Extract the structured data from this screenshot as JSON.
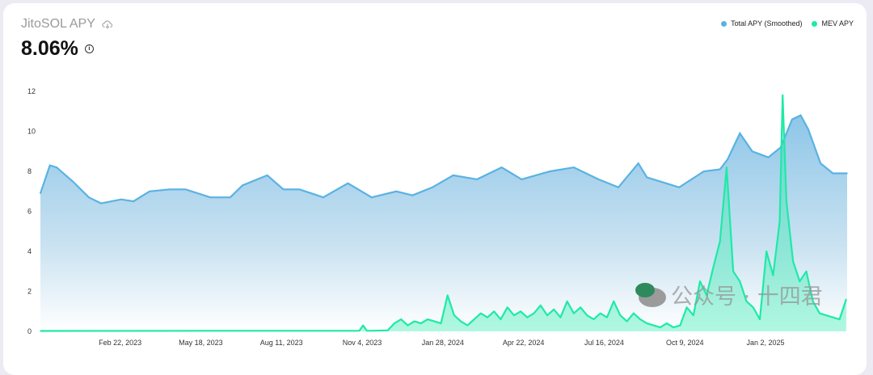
{
  "header": {
    "title": "JitoSOL APY",
    "download_icon": "cloud-download-icon",
    "value": "8.06%",
    "info_icon": "info-icon"
  },
  "chart_data": {
    "type": "area",
    "title": "JitoSOL APY",
    "xlabel": "",
    "ylabel": "",
    "ylim": [
      0,
      12
    ],
    "yticks": [
      "0",
      "2",
      "4",
      "6",
      "8",
      "10",
      "12"
    ],
    "xlim": [
      "2022-11-30",
      "2025-03-29"
    ],
    "xticks": [
      {
        "date": "2023-02-22",
        "label": "Feb 22, 2023"
      },
      {
        "date": "2023-05-18",
        "label": "May 18, 2023"
      },
      {
        "date": "2023-08-11",
        "label": "Aug 11, 2023"
      },
      {
        "date": "2023-11-04",
        "label": "Nov 4, 2023"
      },
      {
        "date": "2024-01-28",
        "label": "Jan 28, 2024"
      },
      {
        "date": "2024-04-22",
        "label": "Apr 22, 2024"
      },
      {
        "date": "2024-07-16",
        "label": "Jul 16, 2024"
      },
      {
        "date": "2024-10-09",
        "label": "Oct 9, 2024"
      },
      {
        "date": "2025-01-02",
        "label": "Jan 2, 2025"
      }
    ],
    "grid": false,
    "legend_position": "top-right",
    "series": [
      {
        "name": "Total APY (Smoothed)",
        "color": "#5ab2e3",
        "type": "area",
        "points": [
          [
            "2022-11-30",
            6.9
          ],
          [
            "2022-12-10",
            8.3
          ],
          [
            "2022-12-17",
            8.2
          ],
          [
            "2023-01-03",
            7.5
          ],
          [
            "2023-01-20",
            6.7
          ],
          [
            "2023-02-02",
            6.4
          ],
          [
            "2023-02-23",
            6.6
          ],
          [
            "2023-03-08",
            6.5
          ],
          [
            "2023-03-25",
            7.0
          ],
          [
            "2023-04-15",
            7.1
          ],
          [
            "2023-05-02",
            7.1
          ],
          [
            "2023-05-28",
            6.7
          ],
          [
            "2023-06-18",
            6.7
          ],
          [
            "2023-07-01",
            7.3
          ],
          [
            "2023-07-27",
            7.8
          ],
          [
            "2023-08-13",
            7.1
          ],
          [
            "2023-08-30",
            7.1
          ],
          [
            "2023-09-24",
            6.7
          ],
          [
            "2023-10-20",
            7.4
          ],
          [
            "2023-11-14",
            6.7
          ],
          [
            "2023-12-10",
            7.0
          ],
          [
            "2023-12-27",
            6.8
          ],
          [
            "2024-01-17",
            7.2
          ],
          [
            "2024-02-08",
            7.8
          ],
          [
            "2024-03-04",
            7.6
          ],
          [
            "2024-03-30",
            8.2
          ],
          [
            "2024-04-20",
            7.6
          ],
          [
            "2024-05-20",
            8.0
          ],
          [
            "2024-06-14",
            8.2
          ],
          [
            "2024-07-10",
            7.6
          ],
          [
            "2024-07-31",
            7.2
          ],
          [
            "2024-08-21",
            8.4
          ],
          [
            "2024-08-30",
            7.7
          ],
          [
            "2024-10-03",
            7.2
          ],
          [
            "2024-10-29",
            8.0
          ],
          [
            "2024-11-15",
            8.1
          ],
          [
            "2024-11-23",
            8.6
          ],
          [
            "2024-12-06",
            9.9
          ],
          [
            "2024-12-19",
            9.0
          ],
          [
            "2025-01-05",
            8.7
          ],
          [
            "2025-01-18",
            9.2
          ],
          [
            "2025-01-30",
            10.6
          ],
          [
            "2025-02-08",
            10.8
          ],
          [
            "2025-02-16",
            10.1
          ],
          [
            "2025-03-01",
            8.4
          ],
          [
            "2025-03-14",
            7.9
          ],
          [
            "2025-03-29",
            7.9
          ]
        ]
      },
      {
        "name": "MEV APY",
        "color": "#1eeaa5",
        "type": "line",
        "points": [
          [
            "2022-11-30",
            0.02
          ],
          [
            "2023-06-01",
            0.03
          ],
          [
            "2023-11-01",
            0.03
          ],
          [
            "2023-11-05",
            0.3
          ],
          [
            "2023-11-09",
            0.03
          ],
          [
            "2023-12-01",
            0.05
          ],
          [
            "2023-12-08",
            0.4
          ],
          [
            "2023-12-15",
            0.6
          ],
          [
            "2023-12-22",
            0.3
          ],
          [
            "2023-12-29",
            0.5
          ],
          [
            "2024-01-05",
            0.4
          ],
          [
            "2024-01-12",
            0.6
          ],
          [
            "2024-01-19",
            0.5
          ],
          [
            "2024-01-26",
            0.4
          ],
          [
            "2024-02-02",
            1.8
          ],
          [
            "2024-02-09",
            0.8
          ],
          [
            "2024-02-16",
            0.5
          ],
          [
            "2024-02-23",
            0.3
          ],
          [
            "2024-03-01",
            0.6
          ],
          [
            "2024-03-08",
            0.9
          ],
          [
            "2024-03-15",
            0.7
          ],
          [
            "2024-03-22",
            1.0
          ],
          [
            "2024-03-29",
            0.6
          ],
          [
            "2024-04-05",
            1.2
          ],
          [
            "2024-04-12",
            0.8
          ],
          [
            "2024-04-19",
            1.0
          ],
          [
            "2024-04-26",
            0.7
          ],
          [
            "2024-05-03",
            0.9
          ],
          [
            "2024-05-10",
            1.3
          ],
          [
            "2024-05-17",
            0.8
          ],
          [
            "2024-05-24",
            1.1
          ],
          [
            "2024-05-31",
            0.7
          ],
          [
            "2024-06-07",
            1.5
          ],
          [
            "2024-06-14",
            0.9
          ],
          [
            "2024-06-21",
            1.2
          ],
          [
            "2024-06-28",
            0.8
          ],
          [
            "2024-07-05",
            0.6
          ],
          [
            "2024-07-12",
            0.9
          ],
          [
            "2024-07-19",
            0.7
          ],
          [
            "2024-07-26",
            1.5
          ],
          [
            "2024-08-02",
            0.8
          ],
          [
            "2024-08-09",
            0.5
          ],
          [
            "2024-08-16",
            0.9
          ],
          [
            "2024-08-23",
            0.6
          ],
          [
            "2024-08-30",
            0.4
          ],
          [
            "2024-09-06",
            0.3
          ],
          [
            "2024-09-13",
            0.2
          ],
          [
            "2024-09-20",
            0.4
          ],
          [
            "2024-09-27",
            0.2
          ],
          [
            "2024-10-04",
            0.3
          ],
          [
            "2024-10-11",
            1.2
          ],
          [
            "2024-10-18",
            0.8
          ],
          [
            "2024-10-25",
            2.5
          ],
          [
            "2024-11-01",
            1.8
          ],
          [
            "2024-11-08",
            3.2
          ],
          [
            "2024-11-15",
            4.5
          ],
          [
            "2024-11-22",
            8.2
          ],
          [
            "2024-11-29",
            3.0
          ],
          [
            "2024-12-06",
            2.5
          ],
          [
            "2024-12-13",
            1.5
          ],
          [
            "2024-12-20",
            1.2
          ],
          [
            "2024-12-27",
            0.6
          ],
          [
            "2025-01-03",
            4.0
          ],
          [
            "2025-01-10",
            2.8
          ],
          [
            "2025-01-17",
            5.5
          ],
          [
            "2025-01-20",
            11.8
          ],
          [
            "2025-01-24",
            6.5
          ],
          [
            "2025-01-31",
            3.5
          ],
          [
            "2025-02-07",
            2.5
          ],
          [
            "2025-02-14",
            3.0
          ],
          [
            "2025-02-21",
            1.5
          ],
          [
            "2025-02-28",
            0.9
          ],
          [
            "2025-03-07",
            0.8
          ],
          [
            "2025-03-14",
            0.7
          ],
          [
            "2025-03-21",
            0.6
          ],
          [
            "2025-03-28",
            1.6
          ]
        ]
      }
    ]
  },
  "watermark": "公众号 · 十四君"
}
